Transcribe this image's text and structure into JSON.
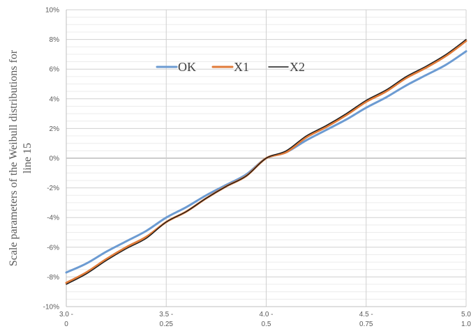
{
  "chart_data": {
    "type": "line",
    "title": "",
    "ylabel_lines": [
      "Scale parameters of the Weibull distributions for",
      "line 15"
    ],
    "xlim": [
      3.0,
      5.0
    ],
    "ylim": [
      -10,
      10
    ],
    "y_ticks": [
      -10,
      -8,
      -6,
      -4,
      -2,
      0,
      2,
      4,
      6,
      8,
      10
    ],
    "y_tick_labels": [
      "-10%",
      "-8%",
      "-6%",
      "-4%",
      "-2%",
      "0%",
      "2%",
      "4%",
      "6%",
      "8%",
      "10%"
    ],
    "x_ticks": [
      3.0,
      3.5,
      4.0,
      4.5,
      5.0
    ],
    "x_tick_labels": [
      [
        "3.0 -",
        "0"
      ],
      [
        "3.5 -",
        "0.25"
      ],
      [
        "4.0 -",
        "0.5"
      ],
      [
        "4.5 -",
        "0.75"
      ],
      [
        "5.0",
        "1.0"
      ]
    ],
    "grid": "major and minor horizontal, major vertical",
    "legend_position": "top-center",
    "series": [
      {
        "name": "OK",
        "color": "#6C9BD2",
        "x": [
          3.0,
          3.1,
          3.2,
          3.3,
          3.4,
          3.5,
          3.6,
          3.7,
          3.8,
          3.9,
          4.0,
          4.1,
          4.2,
          4.3,
          4.4,
          4.5,
          4.6,
          4.7,
          4.8,
          4.9,
          5.0
        ],
        "y": [
          -7.7,
          -7.1,
          -6.3,
          -5.6,
          -4.9,
          -4.0,
          -3.3,
          -2.5,
          -1.8,
          -1.1,
          0.0,
          0.4,
          1.2,
          1.9,
          2.6,
          3.4,
          4.1,
          4.9,
          5.6,
          6.3,
          7.2
        ]
      },
      {
        "name": "X1",
        "color": "#E07B39",
        "x": [
          3.0,
          3.1,
          3.2,
          3.3,
          3.4,
          3.5,
          3.6,
          3.7,
          3.8,
          3.9,
          4.0,
          4.1,
          4.2,
          4.3,
          4.4,
          4.5,
          4.6,
          4.7,
          4.8,
          4.9,
          5.0
        ],
        "y": [
          -8.4,
          -7.7,
          -6.8,
          -6.0,
          -5.3,
          -4.3,
          -3.6,
          -2.7,
          -1.9,
          -1.2,
          0.0,
          0.4,
          1.4,
          2.1,
          2.9,
          3.8,
          4.5,
          5.4,
          6.1,
          6.9,
          7.9
        ]
      },
      {
        "name": "X2",
        "color": "#1A1A1A",
        "x": [
          3.0,
          3.1,
          3.2,
          3.3,
          3.4,
          3.5,
          3.6,
          3.7,
          3.8,
          3.9,
          4.0,
          4.1,
          4.2,
          4.3,
          4.4,
          4.5,
          4.6,
          4.7,
          4.8,
          4.9,
          5.0
        ],
        "y": [
          -8.5,
          -7.8,
          -6.9,
          -6.1,
          -5.4,
          -4.3,
          -3.6,
          -2.7,
          -1.9,
          -1.2,
          0.0,
          0.5,
          1.5,
          2.2,
          3.0,
          3.9,
          4.6,
          5.5,
          6.2,
          7.0,
          8.0
        ]
      }
    ]
  }
}
